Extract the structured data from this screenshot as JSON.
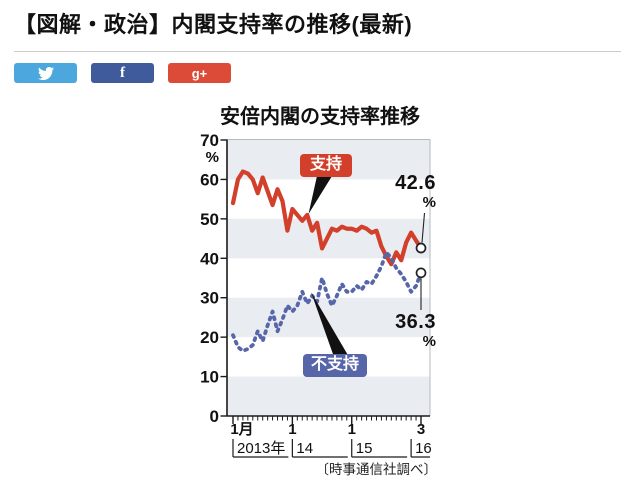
{
  "page": {
    "title": "【図解・政治】内閣支持率の推移(最新)"
  },
  "share_buttons": [
    {
      "name": "twitter",
      "color": "#4da7df",
      "icon": "twitter-bird-icon"
    },
    {
      "name": "facebook",
      "color": "#3f5b9c",
      "icon": "facebook-f-icon",
      "glyph": "f"
    },
    {
      "name": "googleplus",
      "color": "#dc4a38",
      "icon": "google-plus-icon",
      "glyph": "g+"
    }
  ],
  "chart_data": {
    "type": "line",
    "title": "安倍内閣の支持率推移",
    "ylabel_unit": "%",
    "ylim": [
      0,
      70
    ],
    "y_ticks": [
      0,
      10,
      20,
      30,
      40,
      50,
      60,
      70
    ],
    "grid": "alternating-bands",
    "band_fill_ranges": [
      [
        0,
        10
      ],
      [
        20,
        30
      ],
      [
        40,
        50
      ],
      [
        60,
        70
      ]
    ],
    "band_color": "#e9ecf1",
    "x": [
      "2013-01",
      "2013-02",
      "2013-03",
      "2013-04",
      "2013-05",
      "2013-06",
      "2013-07",
      "2013-08",
      "2013-09",
      "2013-10",
      "2013-11",
      "2013-12",
      "2014-01",
      "2014-02",
      "2014-03",
      "2014-04",
      "2014-05",
      "2014-06",
      "2014-07",
      "2014-08",
      "2014-09",
      "2014-10",
      "2014-11",
      "2014-12",
      "2015-01",
      "2015-02",
      "2015-03",
      "2015-04",
      "2015-05",
      "2015-06",
      "2015-07",
      "2015-08",
      "2015-09",
      "2015-10",
      "2015-11",
      "2015-12",
      "2016-01",
      "2016-02",
      "2016-03"
    ],
    "x_tick_labels": [
      {
        "label": "1月",
        "month": "2013-01"
      },
      {
        "label": "1",
        "month": "2014-01"
      },
      {
        "label": "1",
        "month": "2015-01"
      },
      {
        "label": "3",
        "month": "2016-03"
      }
    ],
    "year_labels": [
      {
        "label": "2013年",
        "start": "2013-01"
      },
      {
        "label": "14",
        "start": "2014-01"
      },
      {
        "label": "15",
        "start": "2015-01"
      },
      {
        "label": "16",
        "start": "2016-01"
      }
    ],
    "series": [
      {
        "name": "支持",
        "color": "#d23f2a",
        "style": "solid",
        "values": [
          54,
          60,
          62,
          61.5,
          60,
          56.5,
          60.5,
          57,
          53.5,
          57.5,
          54.5,
          47,
          52.5,
          51,
          49.5,
          51,
          47,
          49,
          42.5,
          45,
          47.5,
          47,
          48,
          47.5,
          47.5,
          47,
          48,
          47.5,
          46.5,
          47,
          43,
          40.5,
          38.5,
          41.5,
          39.5,
          44,
          46.5,
          44.5,
          42.6
        ],
        "end_label": "42.6",
        "end_unit": "%"
      },
      {
        "name": "不支持",
        "color": "#5766a8",
        "style": "dotted",
        "values": [
          20.5,
          17.5,
          16.5,
          17,
          18,
          21.5,
          19,
          23,
          26.5,
          21.5,
          24.5,
          28,
          26.5,
          28,
          31.5,
          28.5,
          30.5,
          29,
          35,
          31,
          28,
          30.5,
          33.5,
          31.5,
          31.5,
          33,
          32,
          34,
          33.5,
          35.5,
          38,
          41.5,
          40,
          37.5,
          36,
          34,
          31.5,
          33,
          36.3
        ],
        "end_label": "36.3",
        "end_unit": "%"
      }
    ],
    "source": "〔時事通信社調べ〕"
  }
}
